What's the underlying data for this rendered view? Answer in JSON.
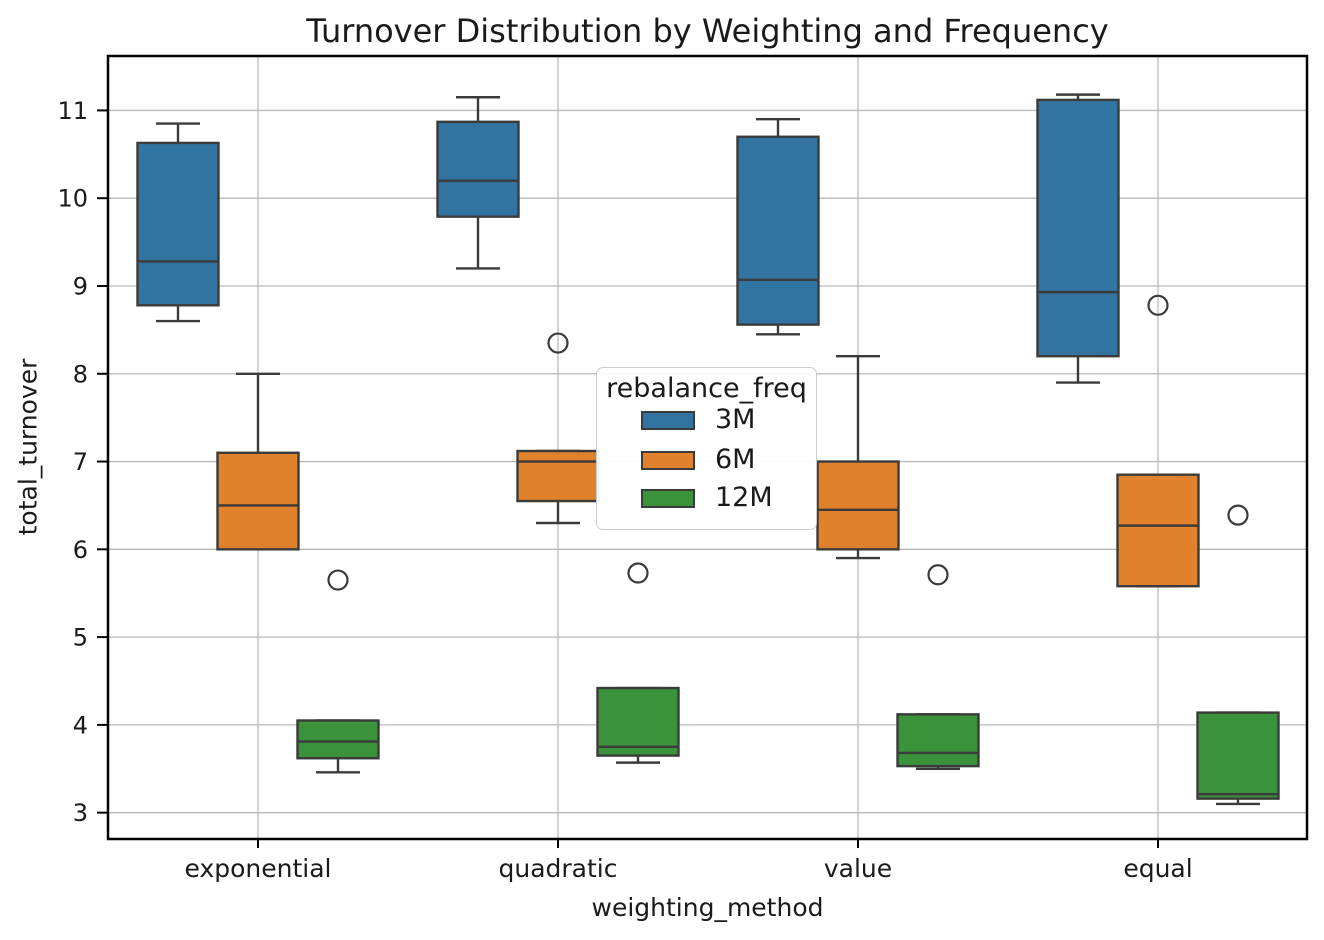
{
  "chart_data": {
    "type": "grouped_boxplot",
    "title": "Turnover Distribution by Weighting and Frequency",
    "xlabel": "weighting_method",
    "ylabel": "total_turnover",
    "categories": [
      "exponential",
      "quadratic",
      "value",
      "equal"
    ],
    "y_ticks": [
      3,
      4,
      5,
      6,
      7,
      8,
      9,
      10,
      11
    ],
    "y_range": [
      2.7,
      11.62
    ],
    "grid": true,
    "legend": {
      "title": "rebalance_freq",
      "position": "center",
      "entries": [
        "3M",
        "6M",
        "12M"
      ]
    },
    "series": [
      {
        "name": "3M",
        "color": "#3274a1",
        "boxes": [
          {
            "category": "exponential",
            "whislo": 8.6,
            "q1": 8.78,
            "med": 9.28,
            "q3": 10.63,
            "whishi": 10.85,
            "fliers": []
          },
          {
            "category": "quadratic",
            "whislo": 9.2,
            "q1": 9.79,
            "med": 10.2,
            "q3": 10.87,
            "whishi": 11.15,
            "fliers": []
          },
          {
            "category": "value",
            "whislo": 8.45,
            "q1": 8.56,
            "med": 9.07,
            "q3": 10.7,
            "whishi": 10.9,
            "fliers": []
          },
          {
            "category": "equal",
            "whislo": 7.9,
            "q1": 8.2,
            "med": 8.93,
            "q3": 11.12,
            "whishi": 11.18,
            "fliers": []
          }
        ]
      },
      {
        "name": "6M",
        "color": "#e1812c",
        "boxes": [
          {
            "category": "exponential",
            "whislo": 6.0,
            "q1": 6.0,
            "med": 6.5,
            "q3": 7.1,
            "whishi": 8.0,
            "fliers": []
          },
          {
            "category": "quadratic",
            "whislo": 6.3,
            "q1": 6.55,
            "med": 7.0,
            "q3": 7.12,
            "whishi": 7.12,
            "fliers": [
              8.35
            ]
          },
          {
            "category": "value",
            "whislo": 5.9,
            "q1": 6.0,
            "med": 6.45,
            "q3": 7.0,
            "whishi": 8.2,
            "fliers": []
          },
          {
            "category": "equal",
            "whislo": 5.58,
            "q1": 5.58,
            "med": 6.27,
            "q3": 6.85,
            "whishi": 6.85,
            "fliers": [
              8.78
            ]
          }
        ]
      },
      {
        "name": "12M",
        "color": "#3a923a",
        "boxes": [
          {
            "category": "exponential",
            "whislo": 3.46,
            "q1": 3.62,
            "med": 3.81,
            "q3": 4.05,
            "whishi": 4.05,
            "fliers": [
              5.65
            ]
          },
          {
            "category": "quadratic",
            "whislo": 3.57,
            "q1": 3.65,
            "med": 3.75,
            "q3": 4.42,
            "whishi": 4.42,
            "fliers": [
              5.73
            ]
          },
          {
            "category": "value",
            "whislo": 3.5,
            "q1": 3.53,
            "med": 3.68,
            "q3": 4.12,
            "whishi": 4.12,
            "fliers": [
              5.71
            ]
          },
          {
            "category": "equal",
            "whislo": 3.1,
            "q1": 3.16,
            "med": 3.21,
            "q3": 4.14,
            "whishi": 4.14,
            "fliers": [
              6.39
            ]
          }
        ]
      }
    ],
    "style": {
      "box_edge_color": "#3b3b3b",
      "grid_color": "#b9b9b9",
      "spine_color": "#000000",
      "text_color": "#1a1a1a",
      "background": "#ffffff"
    }
  }
}
